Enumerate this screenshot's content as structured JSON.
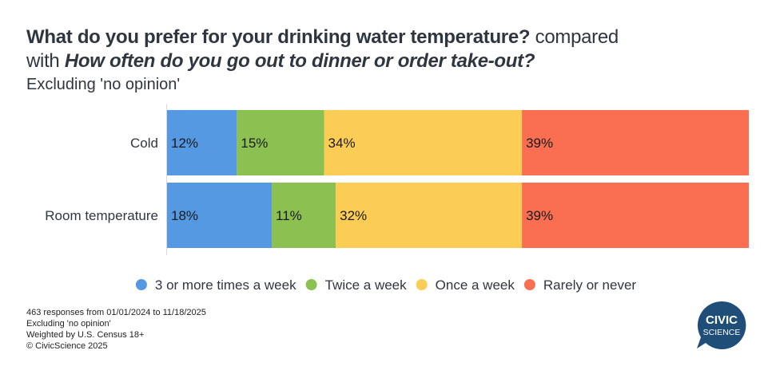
{
  "title": {
    "question1": "What do you prefer for your drinking water temperature?",
    "connector": "compared",
    "with_word": "with",
    "question2": "How often do you go out to dinner or order take-out?"
  },
  "subtitle": "Excluding 'no opinion'",
  "footer": [
    "463 responses from 01/01/2024 to 11/18/2025",
    "Excluding 'no opinion'",
    "Weighted by U.S. Census 18+",
    "© CivicScience 2025"
  ],
  "logo": {
    "line1": "CIVIC",
    "line2": "SCIENCE",
    "color": "#1f4e79"
  },
  "chart_data": {
    "type": "bar",
    "orientation": "horizontal",
    "stacked": "percent",
    "title": "What do you prefer for your drinking water temperature? compared with How often do you go out to dinner or order take-out?",
    "subtitle": "Excluding 'no opinion'",
    "categories": [
      "Cold",
      "Room temperature"
    ],
    "series": [
      {
        "name": "3 or more times a week",
        "color": "#5599e2",
        "values": [
          12,
          18
        ],
        "labels": [
          "12%",
          "18%"
        ]
      },
      {
        "name": "Twice a week",
        "color": "#8cc051",
        "values": [
          15,
          11
        ],
        "labels": [
          "15%",
          "11%"
        ]
      },
      {
        "name": "Once a week",
        "color": "#fccd54",
        "values": [
          34,
          32
        ],
        "labels": [
          "34%",
          "32%"
        ]
      },
      {
        "name": "Rarely or never",
        "color": "#fa6e52",
        "values": [
          39,
          39
        ],
        "labels": [
          "39%",
          "39%"
        ]
      }
    ],
    "xlim": [
      0,
      100
    ],
    "grid": false,
    "legend": "bottom-center"
  }
}
